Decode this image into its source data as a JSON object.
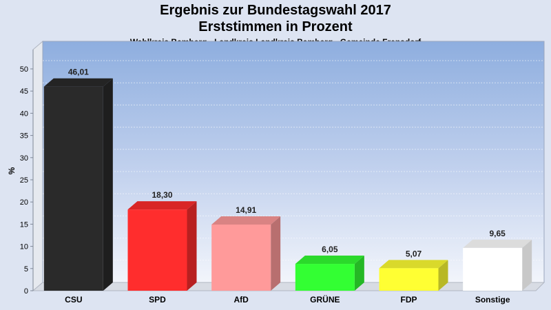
{
  "header": {
    "title": "Ergebnis zur Bundestagswahl 2017",
    "subtitle": "Erststimmen in Prozent",
    "caption": "Wahlkreis Bamberg - Landkreis Landkreis Bamberg - Gemeinde Frensdorf"
  },
  "chart_data": {
    "type": "bar",
    "title": "Ergebnis zur Bundestagswahl 2017",
    "subtitle": "Erststimmen in Prozent",
    "xlabel": "",
    "ylabel": "%",
    "ylim": [
      0,
      50
    ],
    "yticks": [
      0,
      5,
      10,
      15,
      20,
      25,
      30,
      35,
      40,
      45,
      50
    ],
    "grid": true,
    "legend": "none",
    "categories": [
      "CSU",
      "SPD",
      "AfD",
      "GRÜNE",
      "FDP",
      "Sonstige"
    ],
    "values": [
      46.01,
      18.3,
      14.91,
      6.05,
      5.07,
      9.65
    ],
    "value_labels": [
      "46,01",
      "18,30",
      "14,91",
      "6,05",
      "5,07",
      "9,65"
    ],
    "colors": [
      "#2a2a2a",
      "#ff2d2d",
      "#ff9a9a",
      "#33ff33",
      "#ffff33",
      "#ffffff"
    ]
  }
}
